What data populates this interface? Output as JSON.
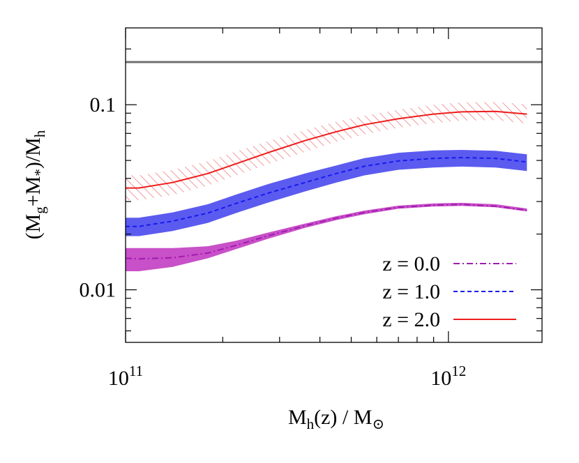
{
  "chart_data": {
    "type": "line",
    "title": "",
    "xlabel": {
      "base": "M",
      "sub": "h",
      "mid": "(z) / M",
      "sub2": "⊙"
    },
    "ylabel": {
      "p1": "(M",
      "s1": "g",
      "p2": "+M",
      "s2": "*",
      "p3": ")/M",
      "s3": "h"
    },
    "xscale": "log",
    "yscale": "log",
    "xlim": [
      100000000000.0,
      1950000000000.0
    ],
    "ylim": [
      0.0052,
      0.26
    ],
    "x_ticks": [
      {
        "value": 100000000000.0,
        "base": "10",
        "exp": "11"
      },
      {
        "value": 1000000000000.0,
        "base": "10",
        "exp": "12"
      }
    ],
    "y_ticks": [
      {
        "value": 0.01,
        "label": "0.01"
      },
      {
        "value": 0.1,
        "label": "0.1"
      }
    ],
    "reference_line": {
      "y": 0.17,
      "color": "#707070"
    },
    "legend_position": "bottom-right",
    "x": [
      100000000000.0,
      110000000000.0,
      140000000000.0,
      180000000000.0,
      220000000000.0,
      280000000000.0,
      360000000000.0,
      450000000000.0,
      550000000000.0,
      700000000000.0,
      900000000000.0,
      1100000000000.0,
      1400000000000.0,
      1750000000000.0
    ],
    "series": [
      {
        "name": "z = 2.0",
        "color": "#ee1c1c",
        "dash": "solid",
        "band": "hatch",
        "band_color": "#f08080",
        "values": [
          0.0355,
          0.0355,
          0.038,
          0.0425,
          0.048,
          0.0555,
          0.064,
          0.0715,
          0.078,
          0.084,
          0.089,
          0.0915,
          0.092,
          0.089
        ],
        "lower": [
          0.0305,
          0.0305,
          0.0325,
          0.0365,
          0.0415,
          0.048,
          0.0555,
          0.063,
          0.069,
          0.075,
          0.0795,
          0.082,
          0.0825,
          0.079
        ],
        "upper": [
          0.0415,
          0.0415,
          0.0445,
          0.0495,
          0.056,
          0.064,
          0.073,
          0.081,
          0.0875,
          0.094,
          0.1,
          0.103,
          0.1035,
          0.1005
        ]
      },
      {
        "name": "z = 1.0",
        "color": "#1a1aee",
        "dash": "dashed",
        "band": "solid",
        "band_color": "#5b5bf0",
        "values": [
          0.022,
          0.022,
          0.0235,
          0.026,
          0.0293,
          0.0335,
          0.038,
          0.0425,
          0.0465,
          0.0497,
          0.0513,
          0.0518,
          0.0513,
          0.049
        ],
        "lower": [
          0.0195,
          0.0195,
          0.0208,
          0.023,
          0.026,
          0.0298,
          0.034,
          0.038,
          0.0415,
          0.0445,
          0.0458,
          0.0463,
          0.0458,
          0.0438
        ],
        "upper": [
          0.0245,
          0.0245,
          0.0262,
          0.029,
          0.0327,
          0.0375,
          0.0425,
          0.047,
          0.0515,
          0.055,
          0.0566,
          0.057,
          0.0564,
          0.054
        ]
      },
      {
        "name": "z = 0.0",
        "color": "#a01ab0",
        "dash": "dashdot",
        "band": "solid",
        "band_color": "#c850c8",
        "values": [
          0.0148,
          0.0147,
          0.0149,
          0.0158,
          0.0174,
          0.0197,
          0.0222,
          0.0244,
          0.0262,
          0.0279,
          0.0287,
          0.0289,
          0.0283,
          0.0269
        ],
        "lower": [
          0.0126,
          0.0126,
          0.0133,
          0.0148,
          0.0166,
          0.019,
          0.0216,
          0.0238,
          0.0256,
          0.0274,
          0.0282,
          0.0284,
          0.0279,
          0.0265
        ],
        "upper": [
          0.0168,
          0.0168,
          0.0168,
          0.0172,
          0.0184,
          0.0205,
          0.0228,
          0.025,
          0.0268,
          0.0285,
          0.0293,
          0.0295,
          0.029,
          0.0275
        ]
      }
    ],
    "legend_order": [
      "z = 0.0",
      "z = 1.0",
      "z = 2.0"
    ]
  }
}
